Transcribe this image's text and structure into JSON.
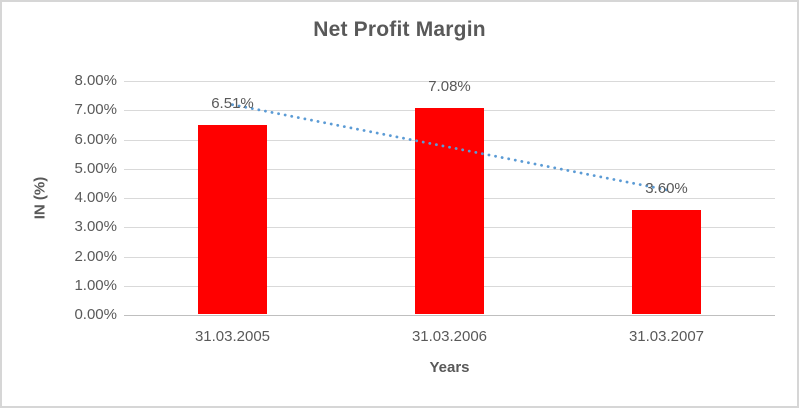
{
  "chart_data": {
    "type": "bar",
    "title": "Net Profit Margin",
    "xlabel": "Years",
    "ylabel": "IN (%)",
    "categories": [
      "31.03.2005",
      "31.03.2006",
      "31.03.2007"
    ],
    "values": [
      6.51,
      7.08,
      3.6
    ],
    "data_labels": [
      "6.51%",
      "7.08%",
      "3.60%"
    ],
    "ylim": [
      0,
      8
    ],
    "ytick_step": 1,
    "ytick_labels": [
      "0.00%",
      "1.00%",
      "2.00%",
      "3.00%",
      "4.00%",
      "5.00%",
      "6.00%",
      "7.00%",
      "8.00%"
    ],
    "grid": true,
    "legend": "none",
    "bar_color": "#ff0000",
    "trendline": {
      "type": "linear",
      "style": "dotted",
      "color": "#5b9bd5",
      "start_value": 7.19,
      "end_value": 4.28,
      "start_category_index": 0,
      "end_category_index": 2
    },
    "colors": {
      "title_text": "#595959",
      "axis_text": "#595959",
      "gridline": "#d9d9d9",
      "axis_line": "#bfbfbf",
      "frame_border": "#d6d6d6",
      "background": "#ffffff"
    }
  }
}
